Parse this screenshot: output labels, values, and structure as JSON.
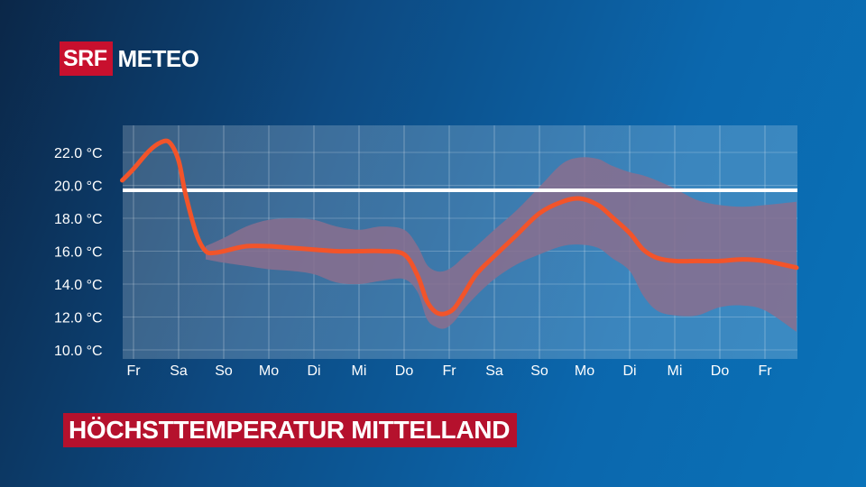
{
  "logo": {
    "brand": "SRF",
    "product": "METEO"
  },
  "caption": "HÖCHSTTEMPERATUR MITTELLAND",
  "chart_data": {
    "type": "line",
    "ylim": [
      10,
      24
    ],
    "y_ticks": [
      10,
      12,
      14,
      16,
      18,
      20,
      22
    ],
    "y_tick_labels": [
      "10.0 °C",
      "12.0 °C",
      "14.0 °C",
      "16.0 °C",
      "18.0 °C",
      "20.0 °C",
      "22.0 °C"
    ],
    "x_labels": [
      "Fr",
      "Sa",
      "So",
      "Mo",
      "Di",
      "Mi",
      "Do",
      "Fr",
      "Sa",
      "So",
      "Mo",
      "Di",
      "Mi",
      "Do",
      "Fr"
    ],
    "xlim": [
      -0.25,
      14.7
    ],
    "reference_value": 19.7,
    "series_line": {
      "x": [
        -0.25,
        0,
        0.35,
        0.6,
        0.8,
        1.0,
        1.15,
        1.4,
        1.6,
        1.8,
        2.0,
        2.5,
        3.0,
        3.5,
        4.0,
        4.5,
        5.0,
        5.5,
        6.0,
        6.3,
        6.5,
        6.7,
        6.9,
        7.1,
        7.3,
        7.6,
        8.0,
        8.5,
        9.0,
        9.5,
        9.9,
        10.3,
        10.6,
        11.0,
        11.3,
        11.6,
        12.0,
        12.5,
        13.0,
        13.5,
        14.0,
        14.7
      ],
      "y": [
        20.3,
        21.0,
        22.1,
        22.6,
        22.6,
        21.5,
        19.5,
        17.0,
        16.0,
        15.9,
        16.0,
        16.3,
        16.3,
        16.2,
        16.1,
        16.0,
        16.0,
        16.0,
        15.8,
        14.5,
        13.0,
        12.3,
        12.2,
        12.5,
        13.3,
        14.6,
        15.7,
        17.0,
        18.3,
        19.0,
        19.2,
        18.8,
        18.1,
        17.1,
        16.1,
        15.6,
        15.4,
        15.4,
        15.4,
        15.5,
        15.4,
        15.0
      ]
    },
    "band": {
      "x": [
        1.6,
        2.0,
        2.5,
        3.0,
        3.5,
        4.0,
        4.5,
        5.0,
        5.5,
        6.0,
        6.3,
        6.5,
        6.7,
        6.9,
        7.1,
        7.3,
        7.6,
        8.0,
        8.5,
        9.0,
        9.5,
        9.9,
        10.3,
        10.6,
        11.0,
        11.3,
        11.6,
        12.0,
        12.5,
        13.0,
        13.5,
        14.0,
        14.7
      ],
      "upper": [
        16.3,
        16.8,
        17.5,
        17.9,
        18.0,
        17.9,
        17.5,
        17.3,
        17.5,
        17.3,
        16.3,
        15.2,
        14.8,
        14.8,
        15.1,
        15.6,
        16.3,
        17.3,
        18.5,
        19.9,
        21.3,
        21.7,
        21.6,
        21.2,
        20.8,
        20.6,
        20.3,
        19.8,
        19.1,
        18.8,
        18.7,
        18.8,
        19.0
      ],
      "lower": [
        15.5,
        15.3,
        15.1,
        14.9,
        14.8,
        14.6,
        14.1,
        14.0,
        14.2,
        14.3,
        13.5,
        11.9,
        11.4,
        11.3,
        11.7,
        12.4,
        13.3,
        14.3,
        15.2,
        15.8,
        16.3,
        16.4,
        16.2,
        15.6,
        14.8,
        13.3,
        12.4,
        12.1,
        12.1,
        12.6,
        12.7,
        12.4,
        11.1
      ]
    },
    "colors": {
      "line": "#f2542a",
      "band": "#8a6f8e",
      "reference": "#ffffff",
      "plot_bg": "#ffffff"
    }
  }
}
